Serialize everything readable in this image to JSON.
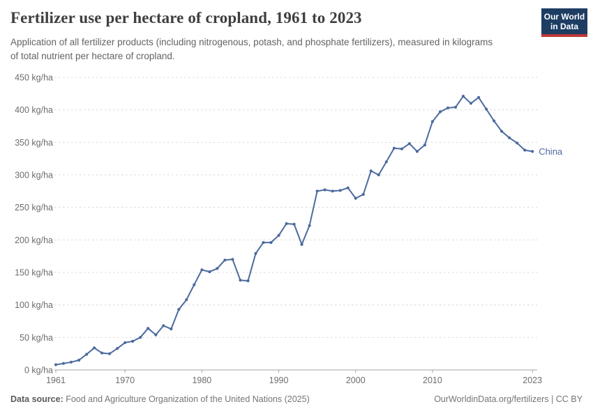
{
  "header": {
    "title": "Fertilizer use per hectare of cropland, 1961 to 2023",
    "subtitle": "Application of all fertilizer products (including nitrogenous, potash, and phosphate fertilizers), measured in kilograms of total nutrient per hectare of cropland.",
    "logo": {
      "line1": "Our World",
      "line2": "in Data",
      "bg_color": "#1d3d63",
      "accent_color": "#bc3838"
    }
  },
  "footer": {
    "datasource_label": "Data source:",
    "datasource_value": "Food and Agriculture Organization of the United Nations (2025)",
    "link_text": "OurWorldinData.org/fertilizers | CC BY"
  },
  "chart_data": {
    "type": "line",
    "title": "Fertilizer use per hectare of cropland, 1961 to 2023",
    "xlabel": "",
    "ylabel": "",
    "unit": "kg/ha",
    "xlim": [
      1961,
      2023
    ],
    "ylim": [
      0,
      450
    ],
    "grid": "dashed-horizontal",
    "legend_position": "end-of-line",
    "x_ticks": [
      1961,
      1970,
      1980,
      1990,
      2000,
      2010,
      2023
    ],
    "y_ticks": [
      0,
      50,
      100,
      150,
      200,
      250,
      300,
      350,
      400,
      450
    ],
    "x": [
      1961,
      1962,
      1963,
      1964,
      1965,
      1966,
      1967,
      1968,
      1969,
      1970,
      1971,
      1972,
      1973,
      1974,
      1975,
      1976,
      1977,
      1978,
      1979,
      1980,
      1981,
      1982,
      1983,
      1984,
      1985,
      1986,
      1987,
      1988,
      1989,
      1990,
      1991,
      1992,
      1993,
      1994,
      1995,
      1996,
      1997,
      1998,
      1999,
      2000,
      2001,
      2002,
      2003,
      2004,
      2005,
      2006,
      2007,
      2008,
      2009,
      2010,
      2011,
      2012,
      2013,
      2014,
      2015,
      2016,
      2017,
      2018,
      2019,
      2020,
      2021,
      2022,
      2023
    ],
    "series": [
      {
        "name": "China",
        "color": "#4c6a9e",
        "values": [
          8,
          10,
          12,
          15,
          24,
          34,
          26,
          25,
          33,
          42,
          44,
          50,
          64,
          54,
          68,
          63,
          93,
          108,
          131,
          154,
          151,
          156,
          169,
          170,
          138,
          137,
          179,
          196,
          196,
          207,
          225,
          224,
          193,
          222,
          275,
          277,
          275,
          276,
          280,
          264,
          270,
          306,
          300,
          320,
          341,
          340,
          348,
          336,
          346,
          382,
          397,
          403,
          404,
          421,
          410,
          419,
          401,
          383,
          367,
          357,
          349,
          338,
          336
        ]
      }
    ],
    "style": {
      "grid_color": "#d9d9d9",
      "axis_color": "#a3a3a3",
      "tick_label_color": "#6d6d6d"
    }
  }
}
